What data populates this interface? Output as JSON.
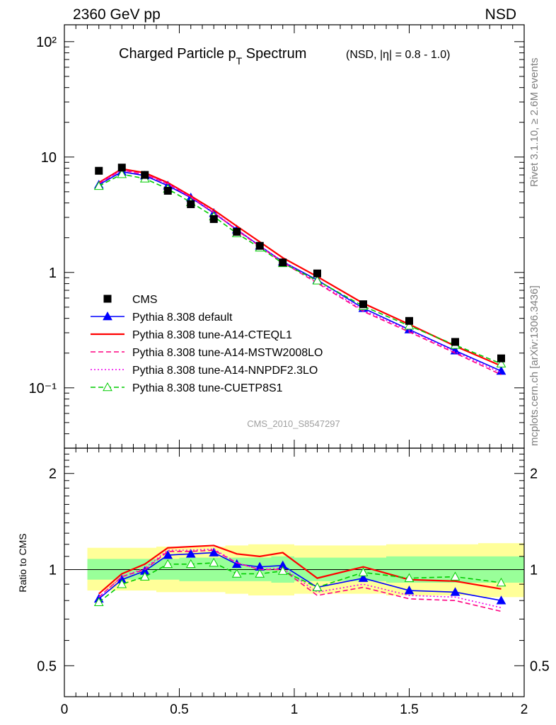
{
  "header": {
    "energy_label": "2360 GeV pp",
    "process_label": "NSD"
  },
  "side": {
    "rivet": "Rivet 3.1.10, ≥ 2.6M events",
    "mcplots": "mcplots.cern.ch [arXiv:1306.3436]"
  },
  "analysis_id": "CMS_2010_S8547297",
  "chart_data": [
    {
      "type": "scatter",
      "title": "Charged Particle pₜ Spectrum",
      "title_main": "Charged Particle p",
      "title_sub": "T",
      "title_tail": " Spectrum",
      "subtitle": "(NSD, |η| = 0.8 - 1.0)",
      "yscale": "log",
      "xlim": [
        0,
        2
      ],
      "ylim": [
        0.03,
        140
      ],
      "ytick_labels": [
        "10²",
        "10",
        "1",
        "10⁻¹"
      ],
      "legend_position": "bottom-left",
      "data": {
        "name": "CMS",
        "x": [
          0.15,
          0.25,
          0.35,
          0.45,
          0.55,
          0.65,
          0.75,
          0.85,
          0.95,
          1.1,
          1.3,
          1.5,
          1.7,
          1.9
        ],
        "y": [
          7.6,
          8.1,
          7.0,
          5.1,
          3.9,
          2.9,
          2.25,
          1.7,
          1.22,
          0.98,
          0.53,
          0.38,
          0.25,
          0.18
        ]
      },
      "series": [
        {
          "name": "Pythia 8.308 default",
          "color": "#0000ff",
          "dash": "solid",
          "marker": "filled-triangle",
          "x": [
            0.15,
            0.25,
            0.35,
            0.45,
            0.55,
            0.65,
            0.75,
            0.85,
            0.95,
            1.1,
            1.3,
            1.5,
            1.7,
            1.9
          ],
          "y": [
            5.75,
            7.45,
            6.9,
            5.65,
            4.45,
            3.27,
            2.35,
            1.7,
            1.24,
            0.86,
            0.49,
            0.32,
            0.21,
            0.14
          ]
        },
        {
          "name": "Pythia 8.308 tune-A14-CTEQL1",
          "color": "#ff0000",
          "dash": "solid",
          "marker": "none",
          "x": [
            0.15,
            0.25,
            0.35,
            0.45,
            0.55,
            0.65,
            0.75,
            0.85,
            0.95,
            1.1,
            1.3,
            1.5,
            1.7,
            1.9
          ],
          "y": [
            6.0,
            7.9,
            7.3,
            6.0,
            4.6,
            3.47,
            2.52,
            1.84,
            1.34,
            0.92,
            0.54,
            0.355,
            0.23,
            0.155
          ]
        },
        {
          "name": "Pythia 8.308 tune-A14-MSTW2008LO",
          "color": "#ff0080",
          "dash": "dashed",
          "marker": "none",
          "x": [
            0.15,
            0.25,
            0.35,
            0.45,
            0.55,
            0.65,
            0.75,
            0.85,
            0.95,
            1.1,
            1.3,
            1.5,
            1.7,
            1.9
          ],
          "y": [
            5.9,
            7.7,
            7.05,
            5.85,
            4.48,
            3.3,
            2.32,
            1.68,
            1.22,
            0.81,
            0.46,
            0.305,
            0.2,
            0.13
          ]
        },
        {
          "name": "Pythia 8.308 tune-A14-NNPDF2.3LO",
          "color": "#ee00ee",
          "dash": "dotted",
          "marker": "none",
          "x": [
            0.15,
            0.25,
            0.35,
            0.45,
            0.55,
            0.65,
            0.75,
            0.85,
            0.95,
            1.1,
            1.3,
            1.5,
            1.7,
            1.9
          ],
          "y": [
            5.95,
            7.75,
            7.1,
            5.9,
            4.5,
            3.33,
            2.36,
            1.7,
            1.24,
            0.83,
            0.47,
            0.315,
            0.205,
            0.135
          ]
        },
        {
          "name": "Pythia 8.308 tune-CUETP8S1",
          "color": "#00cc00",
          "dash": "dashed",
          "marker": "open-triangle",
          "x": [
            0.15,
            0.25,
            0.35,
            0.45,
            0.55,
            0.65,
            0.75,
            0.85,
            0.95,
            1.1,
            1.3,
            1.5,
            1.7,
            1.9
          ],
          "y": [
            5.6,
            7.1,
            6.5,
            5.3,
            4.05,
            3.05,
            2.18,
            1.64,
            1.2,
            0.85,
            0.51,
            0.345,
            0.235,
            0.162
          ]
        }
      ]
    },
    {
      "type": "scatter",
      "title": "",
      "xlabel": "",
      "ylabel": "Ratio to CMS",
      "xlim": [
        0,
        2
      ],
      "ylim": [
        0.4,
        2.4
      ],
      "x_tick_labels": [
        "0",
        "0.5",
        "1",
        "1.5",
        "2"
      ],
      "y_tick_labels": [
        "2",
        "1",
        "0.5"
      ],
      "reference_line": 1,
      "bands": {
        "edges": [
          0.1,
          0.2,
          0.3,
          0.4,
          0.5,
          0.6,
          0.7,
          0.8,
          0.9,
          1.0,
          1.2,
          1.4,
          1.6,
          1.8,
          2.0
        ],
        "yellow_lo": [
          0.86,
          0.86,
          0.86,
          0.85,
          0.85,
          0.85,
          0.84,
          0.83,
          0.83,
          0.84,
          0.84,
          0.83,
          0.83,
          0.82
        ],
        "yellow_hi": [
          1.17,
          1.17,
          1.17,
          1.18,
          1.18,
          1.18,
          1.19,
          1.2,
          1.2,
          1.19,
          1.19,
          1.2,
          1.2,
          1.21
        ],
        "green_lo": [
          0.93,
          0.93,
          0.93,
          0.93,
          0.92,
          0.92,
          0.92,
          0.92,
          0.91,
          0.92,
          0.92,
          0.91,
          0.91,
          0.91
        ],
        "green_hi": [
          1.08,
          1.08,
          1.08,
          1.08,
          1.09,
          1.09,
          1.09,
          1.09,
          1.1,
          1.09,
          1.09,
          1.1,
          1.1,
          1.1
        ]
      },
      "series": [
        {
          "name": "Pythia 8.308 default",
          "color": "#0000ff",
          "dash": "solid",
          "marker": "filled-triangle",
          "x": [
            0.15,
            0.25,
            0.35,
            0.45,
            0.55,
            0.65,
            0.75,
            0.85,
            0.95,
            1.1,
            1.3,
            1.5,
            1.7,
            1.9
          ],
          "y": [
            0.81,
            0.93,
            0.99,
            1.11,
            1.12,
            1.13,
            1.04,
            1.02,
            1.03,
            0.88,
            0.94,
            0.86,
            0.85,
            0.8
          ]
        },
        {
          "name": "Pythia 8.308 tune-A14-CTEQL1",
          "color": "#ff0000",
          "dash": "solid",
          "marker": "none",
          "x": [
            0.15,
            0.25,
            0.35,
            0.45,
            0.55,
            0.65,
            0.75,
            0.85,
            0.95,
            1.1,
            1.3,
            1.5,
            1.7,
            1.9
          ],
          "y": [
            0.84,
            0.97,
            1.04,
            1.17,
            1.18,
            1.19,
            1.12,
            1.1,
            1.13,
            0.94,
            1.02,
            0.93,
            0.92,
            0.87
          ]
        },
        {
          "name": "Pythia 8.308 tune-A14-MSTW2008LO",
          "color": "#ff0080",
          "dash": "dashed",
          "marker": "none",
          "x": [
            0.15,
            0.25,
            0.35,
            0.45,
            0.55,
            0.65,
            0.75,
            0.85,
            0.95,
            1.1,
            1.3,
            1.5,
            1.7,
            1.9
          ],
          "y": [
            0.82,
            0.95,
            1.0,
            1.14,
            1.14,
            1.15,
            1.05,
            1.0,
            1.0,
            0.83,
            0.88,
            0.81,
            0.8,
            0.74
          ]
        },
        {
          "name": "Pythia 8.308 tune-A14-NNPDF2.3LO",
          "color": "#ee00ee",
          "dash": "dotted",
          "marker": "none",
          "x": [
            0.15,
            0.25,
            0.35,
            0.45,
            0.55,
            0.65,
            0.75,
            0.85,
            0.95,
            1.1,
            1.3,
            1.5,
            1.7,
            1.9
          ],
          "y": [
            0.82,
            0.95,
            1.01,
            1.15,
            1.15,
            1.16,
            1.05,
            1.0,
            1.01,
            0.85,
            0.9,
            0.83,
            0.82,
            0.76
          ]
        },
        {
          "name": "Pythia 8.308 tune-CUETP8S1",
          "color": "#00cc00",
          "dash": "dashed",
          "marker": "open-triangle",
          "x": [
            0.15,
            0.25,
            0.35,
            0.45,
            0.55,
            0.65,
            0.75,
            0.85,
            0.95,
            1.1,
            1.3,
            1.5,
            1.7,
            1.9
          ],
          "y": [
            0.79,
            0.9,
            0.95,
            1.04,
            1.04,
            1.05,
            0.97,
            0.97,
            0.99,
            0.88,
            0.98,
            0.94,
            0.95,
            0.91
          ]
        }
      ]
    }
  ]
}
